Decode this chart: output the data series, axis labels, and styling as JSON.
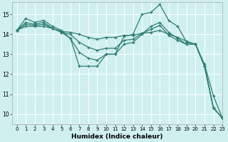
{
  "xlabel": "Humidex (Indice chaleur)",
  "bg_color": "#cff0ef",
  "line_color": "#2e7d72",
  "grid_color": "#ffffff",
  "xlim": [
    -0.5,
    23
  ],
  "ylim": [
    9.5,
    15.6
  ],
  "yticks": [
    10,
    11,
    12,
    13,
    14,
    15
  ],
  "xticks": [
    0,
    1,
    2,
    3,
    4,
    5,
    6,
    7,
    8,
    9,
    10,
    11,
    12,
    13,
    14,
    15,
    16,
    17,
    18,
    19,
    20,
    21,
    22,
    23
  ],
  "lines": [
    {
      "x": [
        0,
        1,
        2,
        3,
        4,
        5,
        6,
        7,
        8,
        9,
        10,
        11,
        12,
        13,
        14,
        15,
        16,
        17,
        18,
        19,
        20,
        21,
        22,
        23
      ],
      "y": [
        14.2,
        14.8,
        14.6,
        14.7,
        14.4,
        14.2,
        13.8,
        12.4,
        12.4,
        12.4,
        13.0,
        13.0,
        13.9,
        14.0,
        15.0,
        15.1,
        15.5,
        14.7,
        14.4,
        13.6,
        13.5,
        12.5,
        10.9,
        9.8
      ]
    },
    {
      "x": [
        0,
        1,
        2,
        3,
        4,
        5,
        6,
        7,
        8,
        9,
        10,
        11,
        12,
        13,
        14,
        15,
        16,
        17,
        18,
        19,
        20,
        21,
        22,
        23
      ],
      "y": [
        14.2,
        14.6,
        14.5,
        14.6,
        14.3,
        14.1,
        13.8,
        13.1,
        12.8,
        12.7,
        13.0,
        13.0,
        13.5,
        13.6,
        14.0,
        14.4,
        14.6,
        14.1,
        13.8,
        13.5,
        13.5,
        12.4,
        10.3,
        9.8
      ]
    },
    {
      "x": [
        0,
        1,
        2,
        3,
        4,
        5,
        6,
        7,
        8,
        9,
        10,
        11,
        12,
        13,
        14,
        15,
        16,
        17,
        18,
        19,
        20,
        21,
        22,
        23
      ],
      "y": [
        14.2,
        14.5,
        14.45,
        14.5,
        14.3,
        14.1,
        14.0,
        13.6,
        13.35,
        13.2,
        13.3,
        13.3,
        13.7,
        13.75,
        14.05,
        14.25,
        14.45,
        13.95,
        13.7,
        13.5,
        13.5,
        12.4,
        10.3,
        9.8
      ]
    },
    {
      "x": [
        0,
        1,
        2,
        3,
        4,
        5,
        6,
        7,
        8,
        9,
        10,
        11,
        12,
        13,
        14,
        15,
        16,
        17,
        18,
        19,
        20,
        21,
        22,
        23
      ],
      "y": [
        14.2,
        14.4,
        14.4,
        14.4,
        14.3,
        14.15,
        14.1,
        14.0,
        13.85,
        13.75,
        13.85,
        13.85,
        13.95,
        13.95,
        14.05,
        14.1,
        14.2,
        14.0,
        13.85,
        13.65,
        13.5,
        12.4,
        10.3,
        9.8
      ]
    }
  ]
}
